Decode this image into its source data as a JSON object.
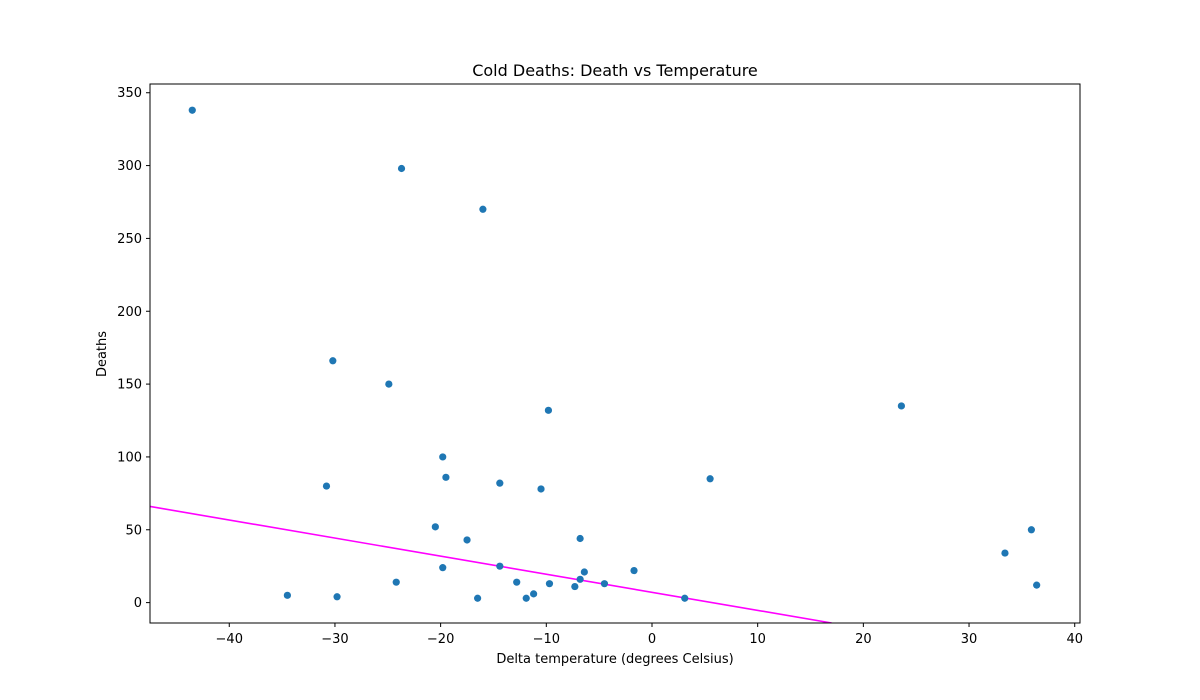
{
  "chart_data": {
    "type": "scatter",
    "title": "Cold Deaths: Death vs Temperature",
    "xlabel": "Delta temperature (degrees Celsius)",
    "ylabel": "Deaths",
    "xlim": [
      -47.5,
      40.5
    ],
    "ylim": [
      -14,
      356
    ],
    "xticks": [
      -40,
      -30,
      -20,
      -10,
      0,
      10,
      20,
      30,
      40
    ],
    "yticks": [
      0,
      50,
      100,
      150,
      200,
      250,
      300,
      350
    ],
    "grid": false,
    "marker_color": "#1f77b4",
    "trend_color": "#ff00ff",
    "points": [
      {
        "x": -43.5,
        "y": 338
      },
      {
        "x": -23.7,
        "y": 298
      },
      {
        "x": -16.0,
        "y": 270
      },
      {
        "x": -30.2,
        "y": 166
      },
      {
        "x": -24.9,
        "y": 150
      },
      {
        "x": -9.8,
        "y": 132
      },
      {
        "x": 23.6,
        "y": 135
      },
      {
        "x": -19.8,
        "y": 100
      },
      {
        "x": -19.5,
        "y": 86
      },
      {
        "x": 5.5,
        "y": 85
      },
      {
        "x": -30.8,
        "y": 80
      },
      {
        "x": -14.4,
        "y": 82
      },
      {
        "x": -10.5,
        "y": 78
      },
      {
        "x": -20.5,
        "y": 52
      },
      {
        "x": -17.5,
        "y": 43
      },
      {
        "x": -6.8,
        "y": 44
      },
      {
        "x": 35.9,
        "y": 50
      },
      {
        "x": 33.4,
        "y": 34
      },
      {
        "x": -19.8,
        "y": 24
      },
      {
        "x": -14.4,
        "y": 25
      },
      {
        "x": -6.4,
        "y": 21
      },
      {
        "x": -1.7,
        "y": 22
      },
      {
        "x": -24.2,
        "y": 14
      },
      {
        "x": -12.8,
        "y": 14
      },
      {
        "x": -9.7,
        "y": 13
      },
      {
        "x": -6.8,
        "y": 16
      },
      {
        "x": -4.5,
        "y": 13
      },
      {
        "x": -7.3,
        "y": 11
      },
      {
        "x": 36.4,
        "y": 12
      },
      {
        "x": -34.5,
        "y": 5
      },
      {
        "x": -29.8,
        "y": 4
      },
      {
        "x": -16.5,
        "y": 3
      },
      {
        "x": -11.9,
        "y": 3
      },
      {
        "x": -11.2,
        "y": 6
      },
      {
        "x": 3.1,
        "y": 3
      }
    ],
    "trend_line": {
      "x": [
        -47.5,
        17.0
      ],
      "y": [
        66,
        -14
      ]
    }
  }
}
